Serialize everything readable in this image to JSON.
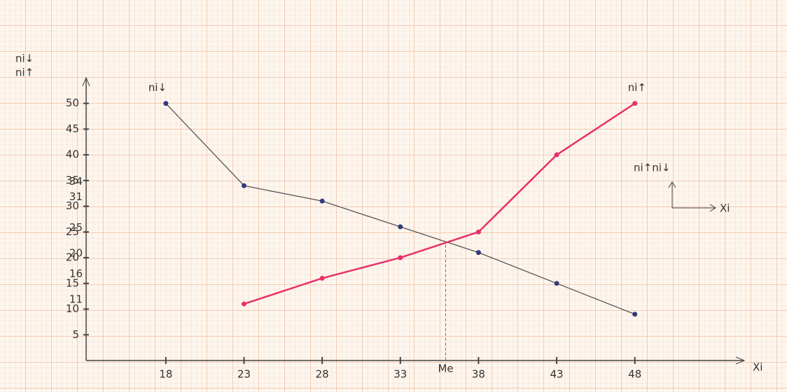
{
  "chart_data": {
    "type": "line",
    "y_label": [
      "ni↓",
      "ni↑"
    ],
    "x_label": "Xi",
    "xlim": [
      12.9,
      55
    ],
    "ylim": [
      0,
      55
    ],
    "xticks": [
      18,
      23,
      28,
      33,
      38,
      43,
      48
    ],
    "yticks": [
      5,
      10,
      15,
      20,
      25,
      30,
      35,
      40,
      45,
      50
    ],
    "x": [
      18,
      23,
      28,
      33,
      38,
      43,
      48
    ],
    "series": [
      {
        "name": "ni↓",
        "color": "#555555",
        "values": [
          50,
          34,
          31,
          26,
          21,
          15,
          9
        ]
      },
      {
        "name": "ni↑",
        "color": "#e8306a",
        "values": [
          null,
          11,
          16,
          20,
          25,
          40,
          50
        ]
      }
    ],
    "marked_values": [
      11,
      16,
      20,
      25,
      31,
      34
    ],
    "median": {
      "label": "Me",
      "value": 35.9
    },
    "inset": {
      "y_label": "ni↑ni↓",
      "x_label": "Xi"
    },
    "grid": true
  }
}
